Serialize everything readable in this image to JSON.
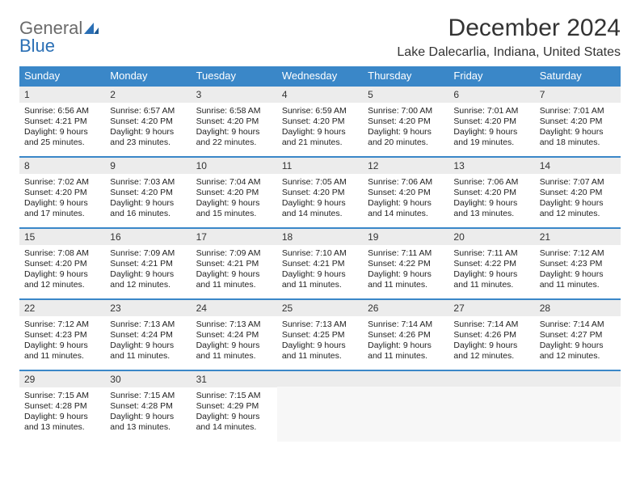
{
  "brand": {
    "general": "General",
    "blue": "Blue"
  },
  "title": "December 2024",
  "location": "Lake Dalecarlia, Indiana, United States",
  "style": {
    "header_bg": "#3a87c8",
    "header_fg": "#ffffff",
    "daynum_bg": "#ececec",
    "row_border": "#3a87c8",
    "page_bg": "#ffffff",
    "logo_gray": "#6b6b6b",
    "logo_blue": "#2a6fb5",
    "title_fontsize": 30,
    "location_fontsize": 16,
    "dayhead_fontsize": 13,
    "cell_fontsize": 10.5
  },
  "day_headers": [
    "Sunday",
    "Monday",
    "Tuesday",
    "Wednesday",
    "Thursday",
    "Friday",
    "Saturday"
  ],
  "weeks": [
    [
      {
        "n": "1",
        "sr": "Sunrise: 6:56 AM",
        "ss": "Sunset: 4:21 PM",
        "d1": "Daylight: 9 hours",
        "d2": "and 25 minutes."
      },
      {
        "n": "2",
        "sr": "Sunrise: 6:57 AM",
        "ss": "Sunset: 4:20 PM",
        "d1": "Daylight: 9 hours",
        "d2": "and 23 minutes."
      },
      {
        "n": "3",
        "sr": "Sunrise: 6:58 AM",
        "ss": "Sunset: 4:20 PM",
        "d1": "Daylight: 9 hours",
        "d2": "and 22 minutes."
      },
      {
        "n": "4",
        "sr": "Sunrise: 6:59 AM",
        "ss": "Sunset: 4:20 PM",
        "d1": "Daylight: 9 hours",
        "d2": "and 21 minutes."
      },
      {
        "n": "5",
        "sr": "Sunrise: 7:00 AM",
        "ss": "Sunset: 4:20 PM",
        "d1": "Daylight: 9 hours",
        "d2": "and 20 minutes."
      },
      {
        "n": "6",
        "sr": "Sunrise: 7:01 AM",
        "ss": "Sunset: 4:20 PM",
        "d1": "Daylight: 9 hours",
        "d2": "and 19 minutes."
      },
      {
        "n": "7",
        "sr": "Sunrise: 7:01 AM",
        "ss": "Sunset: 4:20 PM",
        "d1": "Daylight: 9 hours",
        "d2": "and 18 minutes."
      }
    ],
    [
      {
        "n": "8",
        "sr": "Sunrise: 7:02 AM",
        "ss": "Sunset: 4:20 PM",
        "d1": "Daylight: 9 hours",
        "d2": "and 17 minutes."
      },
      {
        "n": "9",
        "sr": "Sunrise: 7:03 AM",
        "ss": "Sunset: 4:20 PM",
        "d1": "Daylight: 9 hours",
        "d2": "and 16 minutes."
      },
      {
        "n": "10",
        "sr": "Sunrise: 7:04 AM",
        "ss": "Sunset: 4:20 PM",
        "d1": "Daylight: 9 hours",
        "d2": "and 15 minutes."
      },
      {
        "n": "11",
        "sr": "Sunrise: 7:05 AM",
        "ss": "Sunset: 4:20 PM",
        "d1": "Daylight: 9 hours",
        "d2": "and 14 minutes."
      },
      {
        "n": "12",
        "sr": "Sunrise: 7:06 AM",
        "ss": "Sunset: 4:20 PM",
        "d1": "Daylight: 9 hours",
        "d2": "and 14 minutes."
      },
      {
        "n": "13",
        "sr": "Sunrise: 7:06 AM",
        "ss": "Sunset: 4:20 PM",
        "d1": "Daylight: 9 hours",
        "d2": "and 13 minutes."
      },
      {
        "n": "14",
        "sr": "Sunrise: 7:07 AM",
        "ss": "Sunset: 4:20 PM",
        "d1": "Daylight: 9 hours",
        "d2": "and 12 minutes."
      }
    ],
    [
      {
        "n": "15",
        "sr": "Sunrise: 7:08 AM",
        "ss": "Sunset: 4:20 PM",
        "d1": "Daylight: 9 hours",
        "d2": "and 12 minutes."
      },
      {
        "n": "16",
        "sr": "Sunrise: 7:09 AM",
        "ss": "Sunset: 4:21 PM",
        "d1": "Daylight: 9 hours",
        "d2": "and 12 minutes."
      },
      {
        "n": "17",
        "sr": "Sunrise: 7:09 AM",
        "ss": "Sunset: 4:21 PM",
        "d1": "Daylight: 9 hours",
        "d2": "and 11 minutes."
      },
      {
        "n": "18",
        "sr": "Sunrise: 7:10 AM",
        "ss": "Sunset: 4:21 PM",
        "d1": "Daylight: 9 hours",
        "d2": "and 11 minutes."
      },
      {
        "n": "19",
        "sr": "Sunrise: 7:11 AM",
        "ss": "Sunset: 4:22 PM",
        "d1": "Daylight: 9 hours",
        "d2": "and 11 minutes."
      },
      {
        "n": "20",
        "sr": "Sunrise: 7:11 AM",
        "ss": "Sunset: 4:22 PM",
        "d1": "Daylight: 9 hours",
        "d2": "and 11 minutes."
      },
      {
        "n": "21",
        "sr": "Sunrise: 7:12 AM",
        "ss": "Sunset: 4:23 PM",
        "d1": "Daylight: 9 hours",
        "d2": "and 11 minutes."
      }
    ],
    [
      {
        "n": "22",
        "sr": "Sunrise: 7:12 AM",
        "ss": "Sunset: 4:23 PM",
        "d1": "Daylight: 9 hours",
        "d2": "and 11 minutes."
      },
      {
        "n": "23",
        "sr": "Sunrise: 7:13 AM",
        "ss": "Sunset: 4:24 PM",
        "d1": "Daylight: 9 hours",
        "d2": "and 11 minutes."
      },
      {
        "n": "24",
        "sr": "Sunrise: 7:13 AM",
        "ss": "Sunset: 4:24 PM",
        "d1": "Daylight: 9 hours",
        "d2": "and 11 minutes."
      },
      {
        "n": "25",
        "sr": "Sunrise: 7:13 AM",
        "ss": "Sunset: 4:25 PM",
        "d1": "Daylight: 9 hours",
        "d2": "and 11 minutes."
      },
      {
        "n": "26",
        "sr": "Sunrise: 7:14 AM",
        "ss": "Sunset: 4:26 PM",
        "d1": "Daylight: 9 hours",
        "d2": "and 11 minutes."
      },
      {
        "n": "27",
        "sr": "Sunrise: 7:14 AM",
        "ss": "Sunset: 4:26 PM",
        "d1": "Daylight: 9 hours",
        "d2": "and 12 minutes."
      },
      {
        "n": "28",
        "sr": "Sunrise: 7:14 AM",
        "ss": "Sunset: 4:27 PM",
        "d1": "Daylight: 9 hours",
        "d2": "and 12 minutes."
      }
    ],
    [
      {
        "n": "29",
        "sr": "Sunrise: 7:15 AM",
        "ss": "Sunset: 4:28 PM",
        "d1": "Daylight: 9 hours",
        "d2": "and 13 minutes."
      },
      {
        "n": "30",
        "sr": "Sunrise: 7:15 AM",
        "ss": "Sunset: 4:28 PM",
        "d1": "Daylight: 9 hours",
        "d2": "and 13 minutes."
      },
      {
        "n": "31",
        "sr": "Sunrise: 7:15 AM",
        "ss": "Sunset: 4:29 PM",
        "d1": "Daylight: 9 hours",
        "d2": "and 14 minutes."
      },
      {
        "empty": true
      },
      {
        "empty": true
      },
      {
        "empty": true
      },
      {
        "empty": true
      }
    ]
  ]
}
